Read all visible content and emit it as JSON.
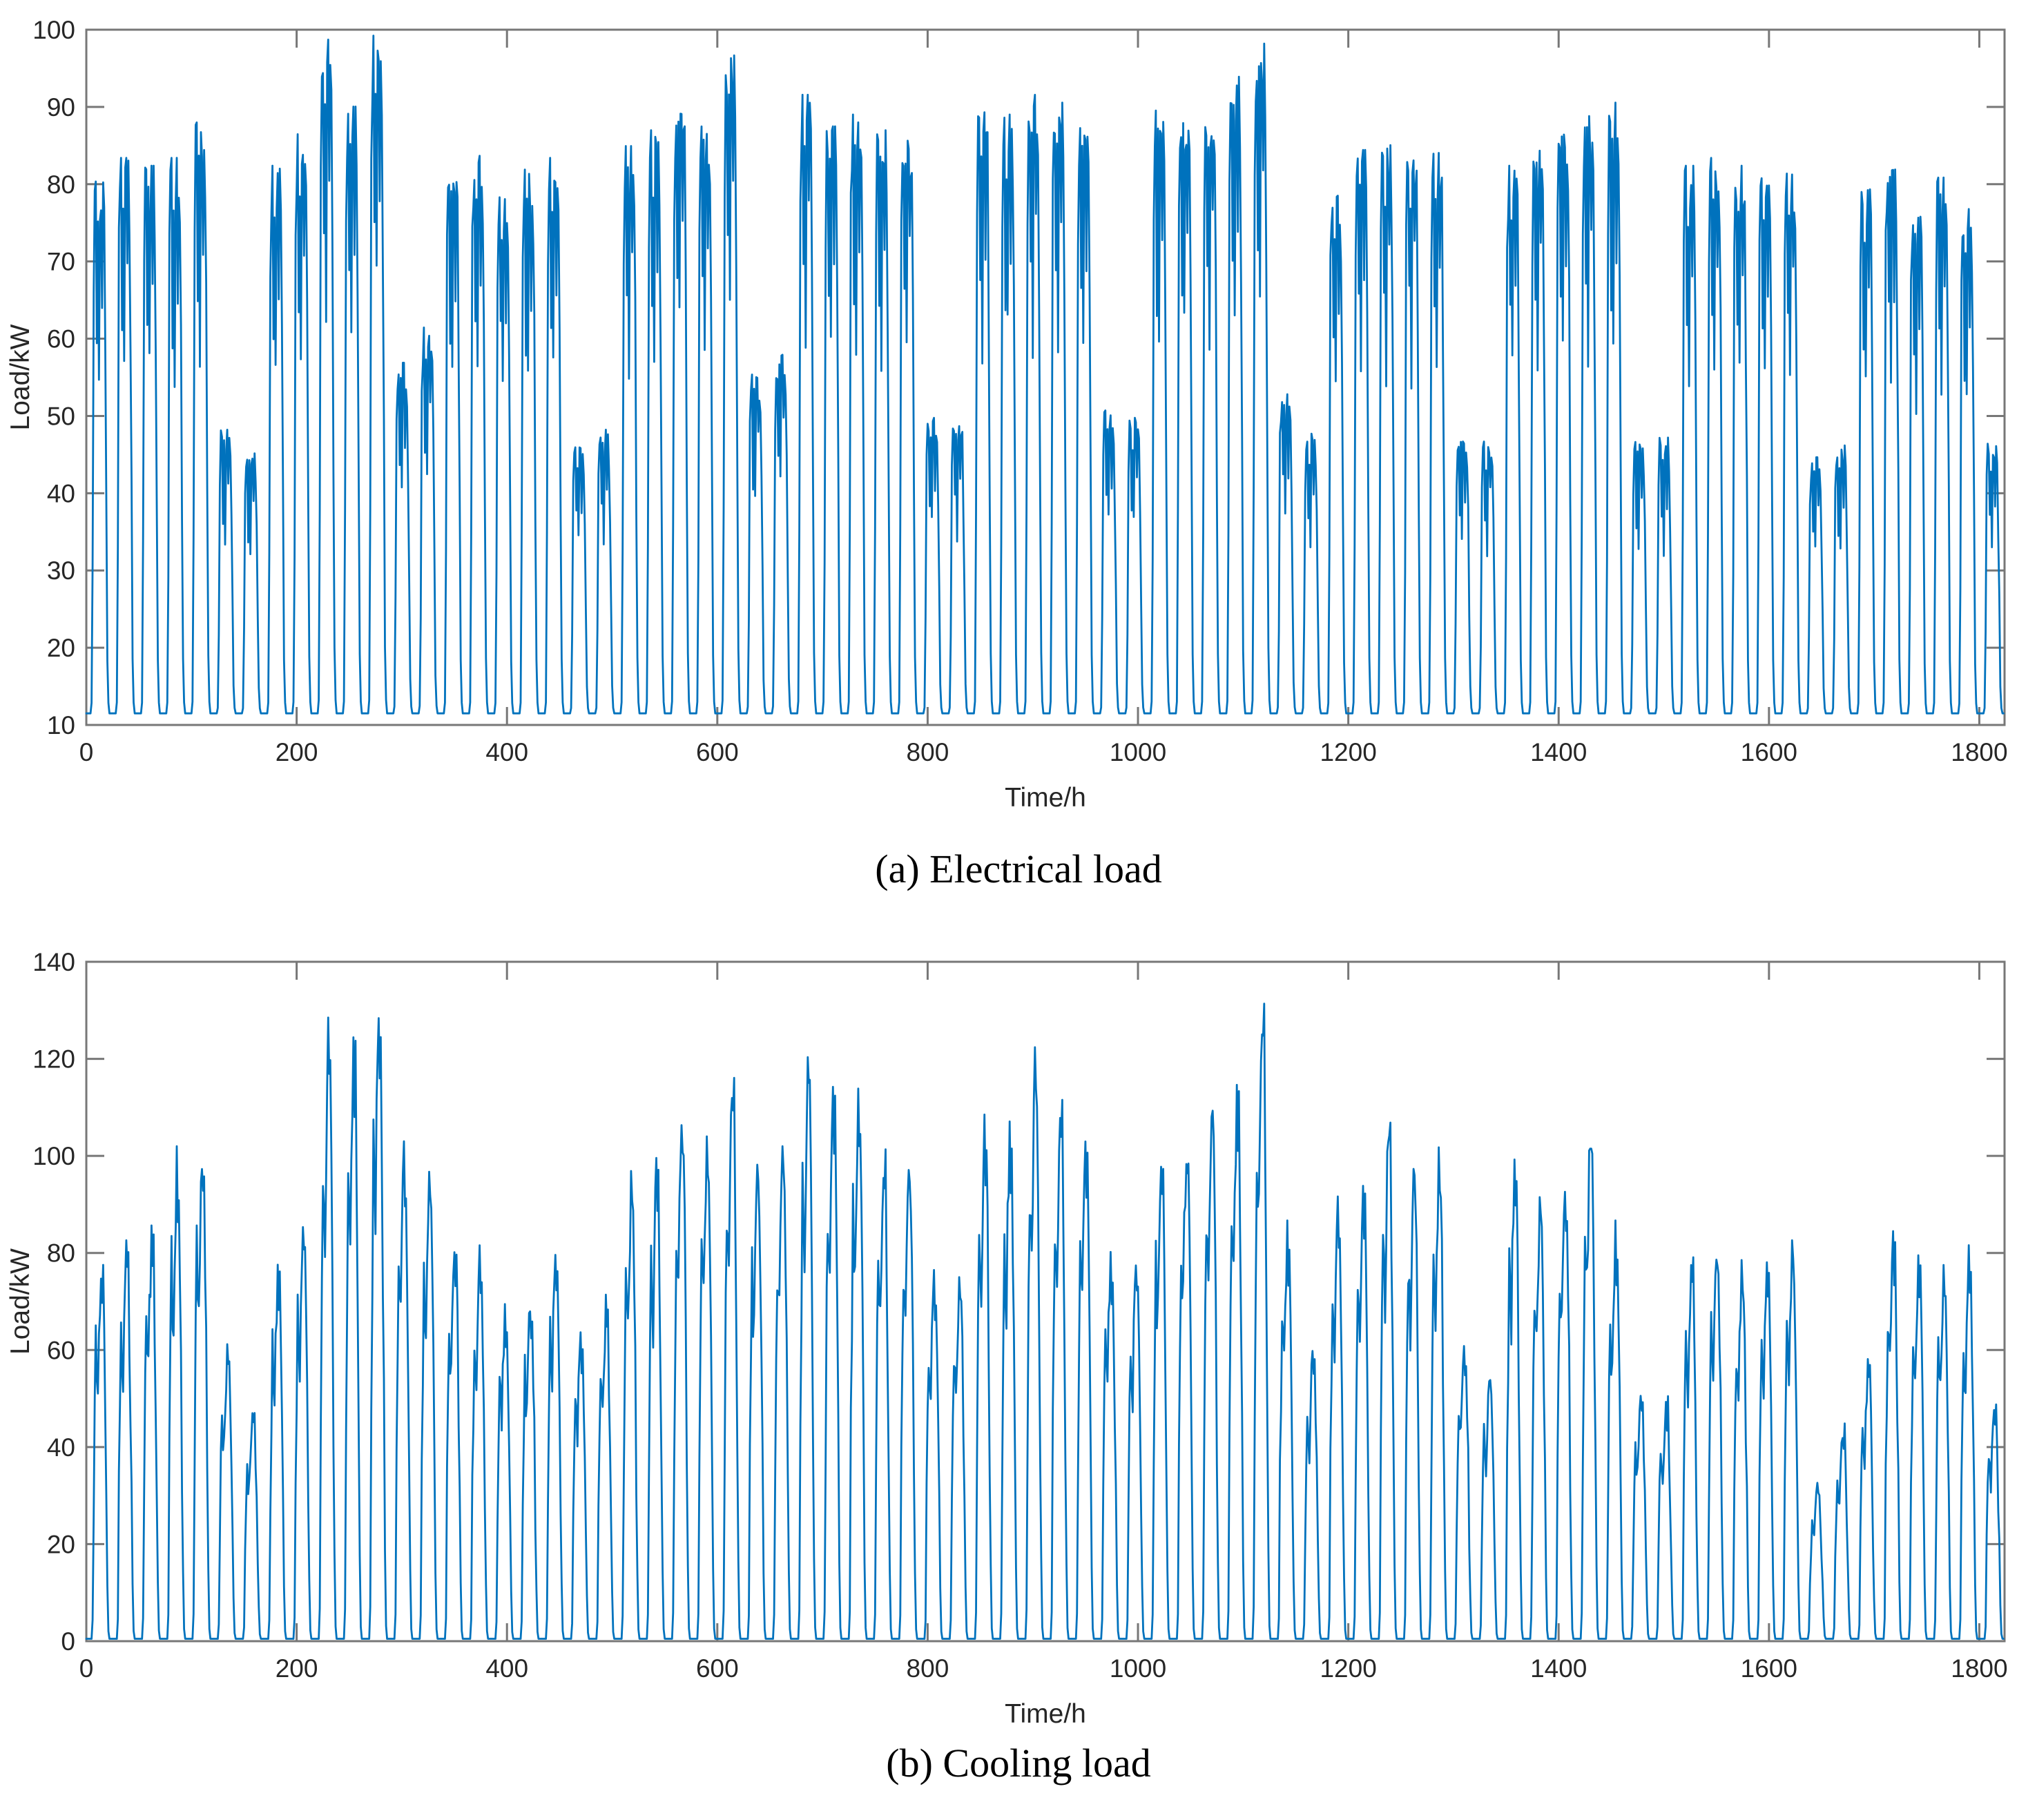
{
  "figure": {
    "background_color": "#ffffff",
    "panels": [
      {
        "id": "electrical",
        "caption": "(a) Electrical load",
        "xlabel": "Time/h",
        "ylabel": "Load/kW"
      },
      {
        "id": "cooling",
        "caption": "(b) Cooling load",
        "xlabel": "Time/h",
        "ylabel": "Load/kW"
      }
    ]
  },
  "chart_data": [
    {
      "type": "line",
      "title": "(a) Electrical load",
      "xlabel": "Time/h",
      "ylabel": "Load/kW",
      "xlim": [
        0,
        1824
      ],
      "ylim": [
        10,
        100
      ],
      "xticks": [
        0,
        200,
        400,
        600,
        800,
        1000,
        1200,
        1400,
        1600,
        1800
      ],
      "yticks": [
        10,
        20,
        30,
        40,
        50,
        60,
        70,
        80,
        90,
        100
      ],
      "grid": false,
      "legend": null,
      "line_color": "#0072BD",
      "axis_color": "#777777",
      "sampling": "hourly",
      "hours": 1824,
      "baseline_kw": 11.5,
      "daily_peaks_kw": [
        79,
        82,
        81,
        82,
        86.5,
        47.5,
        44.5,
        81,
        85,
        97,
        88.5,
        97.5,
        56,
        60.5,
        81,
        82.5,
        78.5,
        80.5,
        82,
        46,
        47.5,
        83.5,
        85.5,
        89.5,
        86.5,
        95,
        54.5,
        57,
        90,
        86,
        87.5,
        85.5,
        84.5,
        49,
        49.5,
        89,
        87.5,
        90,
        89,
        87,
        50,
        49,
        88,
        88,
        88.5,
        93,
        96.5,
        52,
        47,
        77.5,
        83,
        84,
        83.5,
        83,
        47,
        46,
        81,
        84,
        87,
        87.5,
        89,
        46,
        46.5,
        81,
        82,
        81,
        80.5,
        80,
        44,
        45.5,
        78,
        81.5,
        76,
        79.5,
        75.5,
        46
      ],
      "intraday_shape": [
        0,
        0,
        0,
        0,
        0,
        0.02,
        0.3,
        0.85,
        0.97,
        1.0,
        0.72,
        0.95,
        0.63,
        0.98,
        1.0,
        0.8,
        0.99,
        0.93,
        0.7,
        0.4,
        0.1,
        0.02,
        0,
        0
      ],
      "jitter_fraction": 0.05,
      "pattern_note": "Hourly electrical load over ~76 days; weekday daily peaks mostly 76-97 kW, weekend days drop to ~44-60 kW, overnight baseline ~11.5 kW"
    },
    {
      "type": "line",
      "title": "(b) Cooling load",
      "xlabel": "Time/h",
      "ylabel": "Load/kW",
      "xlim": [
        0,
        1824
      ],
      "ylim": [
        0,
        140
      ],
      "xticks": [
        0,
        200,
        400,
        600,
        800,
        1000,
        1200,
        1400,
        1600,
        1800
      ],
      "yticks": [
        0,
        20,
        40,
        60,
        80,
        100,
        120,
        140
      ],
      "grid": false,
      "legend": null,
      "line_color": "#0072BD",
      "axis_color": "#777777",
      "sampling": "hourly",
      "hours": 1824,
      "baseline_kw": 0.5,
      "daily_peaks_kw": [
        78,
        81,
        84,
        100,
        102,
        60,
        47,
        77,
        87,
        126,
        122,
        131,
        101,
        97,
        83,
        80,
        70,
        72,
        82,
        64,
        70,
        95,
        100,
        107,
        104,
        115,
        97,
        100,
        118,
        112,
        113,
        100,
        97,
        75,
        77,
        108,
        105,
        120,
        110,
        105,
        80,
        77,
        100,
        103,
        112,
        115,
        131,
        85,
        60,
        90,
        92,
        108,
        98,
        100,
        62,
        55,
        98,
        91,
        96,
        107,
        85,
        51,
        50,
        79,
        82,
        77,
        79,
        81,
        32,
        44,
        57,
        84,
        80,
        76,
        80,
        50
      ],
      "intraday_shape": [
        0,
        0,
        0,
        0,
        0,
        0,
        0.05,
        0.38,
        0.6,
        0.78,
        0.7,
        0.66,
        0.8,
        0.9,
        1.0,
        0.92,
        0.96,
        0.78,
        0.58,
        0.36,
        0.14,
        0.02,
        0,
        0
      ],
      "jitter_fraction": 0.06,
      "pattern_note": "Hourly cooling load over ~76 days; daily peaks ~32-131 kW, highest ~131 kW near hours 280 and 1120, load returns to ~0 kW overnight"
    }
  ]
}
